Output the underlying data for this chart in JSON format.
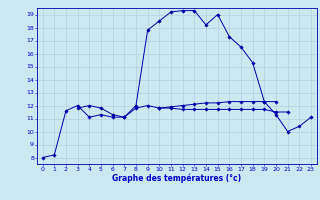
{
  "bg_color": "#cce8f0",
  "grid_color": "#aaccdd",
  "line_color": "#0000aa",
  "marker_color": "#0000aa",
  "xlabel": "Graphe des températures (°c)",
  "xlabel_color": "#0000cc",
  "xlabel_fontsize": 5.5,
  "tick_color": "#0000cc",
  "tick_fontsize": 4.5,
  "xlim": [
    -0.5,
    23.5
  ],
  "ylim": [
    7.5,
    19.5
  ],
  "yticks": [
    8,
    9,
    10,
    11,
    12,
    13,
    14,
    15,
    16,
    17,
    18,
    19
  ],
  "xticks": [
    0,
    1,
    2,
    3,
    4,
    5,
    6,
    7,
    8,
    9,
    10,
    11,
    12,
    13,
    14,
    15,
    16,
    17,
    18,
    19,
    20,
    21,
    22,
    23
  ],
  "series1_x": [
    0,
    1,
    2,
    3,
    4,
    5,
    6,
    7,
    8,
    9,
    10,
    11,
    12,
    13,
    14,
    15,
    16,
    17,
    18,
    19,
    20,
    21,
    22,
    23
  ],
  "series1_y": [
    8.0,
    8.2,
    11.6,
    12.0,
    11.1,
    11.3,
    11.1,
    11.1,
    12.0,
    17.8,
    18.5,
    19.2,
    19.3,
    19.3,
    18.2,
    19.0,
    17.3,
    16.5,
    15.3,
    12.3,
    11.3,
    10.0,
    10.4,
    11.1
  ],
  "series2_x": [
    3,
    4,
    5,
    6,
    7,
    8,
    9,
    10,
    11,
    12,
    13,
    14,
    15,
    16,
    17,
    18,
    19,
    20,
    21
  ],
  "series2_y": [
    11.8,
    12.0,
    11.8,
    11.3,
    11.1,
    11.8,
    12.0,
    11.8,
    11.8,
    11.7,
    11.7,
    11.7,
    11.7,
    11.7,
    11.7,
    11.7,
    11.7,
    11.5,
    11.5
  ],
  "series3_x": [
    10,
    11,
    12,
    13,
    14,
    15,
    16,
    17,
    18,
    19,
    20
  ],
  "series3_y": [
    11.8,
    11.9,
    12.0,
    12.1,
    12.2,
    12.2,
    12.3,
    12.3,
    12.3,
    12.3,
    12.3
  ],
  "linewidth": 0.7,
  "markersize": 1.8
}
